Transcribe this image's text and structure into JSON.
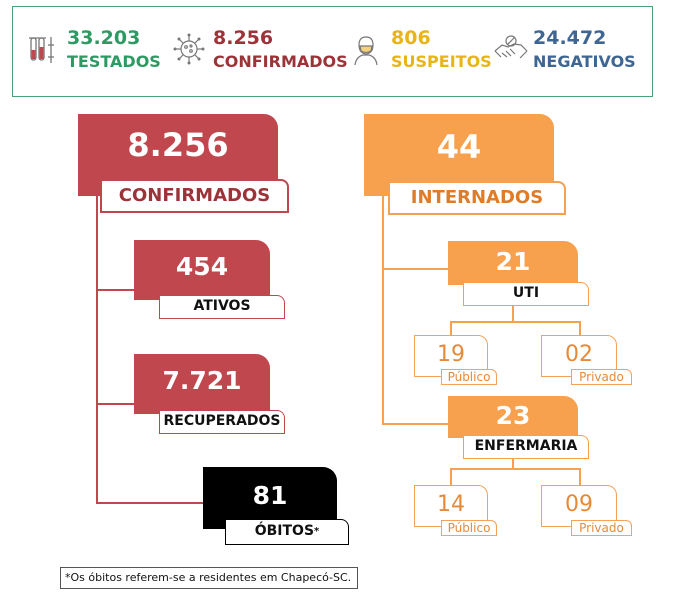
{
  "summary": {
    "testados": {
      "value": "33.203",
      "label": "TESTADOS",
      "icon": "test-tubes-icon",
      "color": "#2e9a63"
    },
    "confirmados": {
      "value": "8.256",
      "label": "CONFIRMADOS",
      "icon": "virus-icon",
      "color": "#9c3338"
    },
    "suspeitos": {
      "value": "806",
      "label": "SUSPEITOS",
      "icon": "masked-person-icon",
      "color": "#e8b417"
    },
    "negativos": {
      "value": "24.472",
      "label": "NEGATIVOS",
      "icon": "handshake-icon",
      "color": "#3f6693"
    }
  },
  "left": {
    "confirmados": {
      "value": "8.256",
      "label": "CONFIRMADOS"
    },
    "ativos": {
      "value": "454",
      "label": "ATIVOS"
    },
    "recuperados": {
      "value": "7.721",
      "label": "RECUPERADOS"
    },
    "obitos": {
      "value": "81",
      "label": "ÓBITOS",
      "mark": "*"
    }
  },
  "right": {
    "internados": {
      "value": "44",
      "label": "INTERNADOS"
    },
    "uti": {
      "value": "21",
      "label": "UTI",
      "publico": {
        "value": "19",
        "label": "Público"
      },
      "privado": {
        "value": "02",
        "label": "Privado"
      }
    },
    "enfermaria": {
      "value": "23",
      "label": "ENFERMARIA",
      "publico": {
        "value": "14",
        "label": "Público"
      },
      "privado": {
        "value": "09",
        "label": "Privado"
      }
    }
  },
  "colors": {
    "red": "#c0474d",
    "orange": "#f7a04e",
    "black": "#000000",
    "dark_red_text": "#9c3338"
  },
  "footnote": "*Os óbitos referem-se a residentes em Chapecó-SC."
}
